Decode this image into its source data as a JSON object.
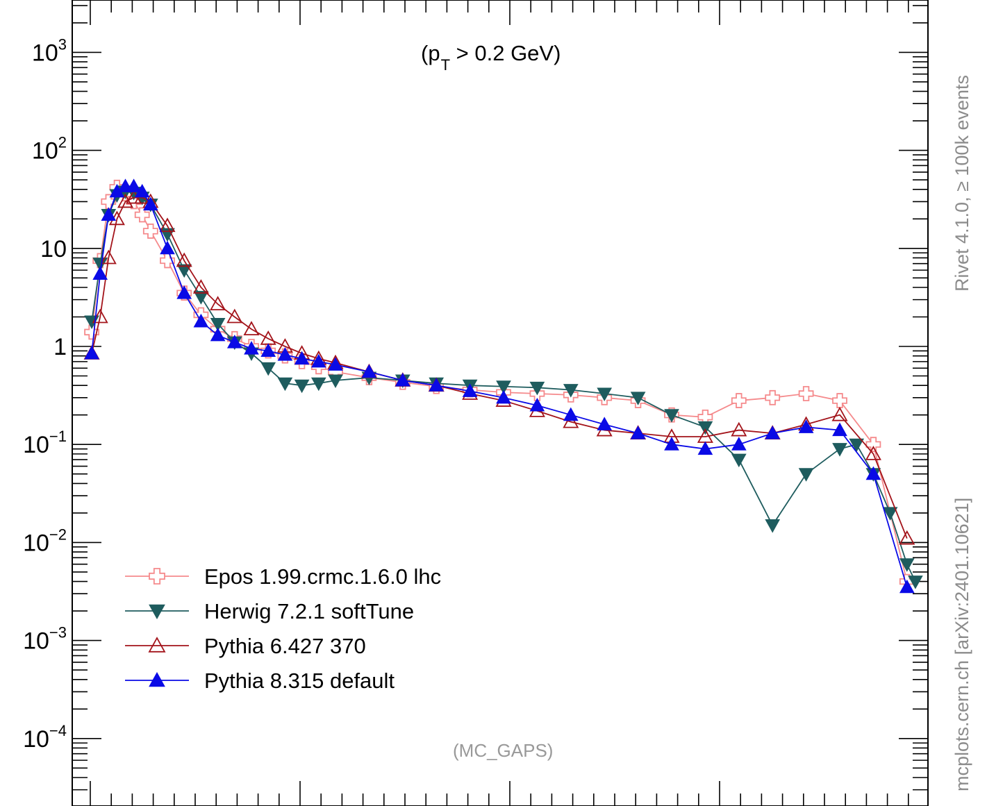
{
  "chart_data": {
    "type": "line",
    "title": "(p_T > 0.2 GeV)",
    "title_main": "(p",
    "title_sub": "T",
    "title_rest": " > 0.2 GeV)",
    "watermark": "(MC_GAPS)",
    "side_label_top": "Rivet 4.1.0, ≥ 100k events",
    "side_label_bottom": "mcplots.cern.ch [arXiv:2401.10621]",
    "y_scale": "log",
    "ylim": [
      2.5e-05,
      3000
    ],
    "xlim": [
      0,
      100
    ],
    "y_tick_labels": [
      {
        "value": 1000,
        "base": "10",
        "exp": "3"
      },
      {
        "value": 100,
        "base": "10",
        "exp": "2"
      },
      {
        "value": 10,
        "base": "10",
        "exp": ""
      },
      {
        "value": 1,
        "base": "1",
        "exp": ""
      },
      {
        "value": 0.1,
        "base": "10",
        "exp": "−1"
      },
      {
        "value": 0.01,
        "base": "10",
        "exp": "−2"
      },
      {
        "value": 0.001,
        "base": "10",
        "exp": "−3"
      },
      {
        "value": 0.0001,
        "base": "10",
        "exp": "−4"
      }
    ],
    "legend_position": "bottom-left",
    "series": [
      {
        "name": "Epos 1.99.crmc.1.6.0 lhc",
        "color": "#f58a8c",
        "marker": "open-cross",
        "x": [
          1,
          2,
          3,
          4,
          5,
          6,
          7,
          8,
          10,
          12,
          14,
          16,
          18,
          20,
          22,
          24,
          26,
          28,
          30,
          34,
          38,
          42,
          46,
          50,
          54,
          58,
          62,
          66,
          70,
          74,
          78,
          82,
          86,
          90,
          94,
          98
        ],
        "y": [
          1.4,
          7.5,
          30,
          42,
          36,
          30,
          22,
          15,
          7.5,
          3.5,
          2.1,
          1.5,
          1.2,
          1.0,
          0.9,
          0.8,
          0.7,
          0.62,
          0.55,
          0.48,
          0.43,
          0.39,
          0.36,
          0.34,
          0.33,
          0.32,
          0.3,
          0.28,
          0.2,
          0.19,
          0.28,
          0.3,
          0.33,
          0.28,
          0.1,
          0.004
        ]
      },
      {
        "name": "Herwig 7.2.1 softTune",
        "color": "#1e5c5e",
        "marker": "filled-triangle-down",
        "x": [
          1,
          2,
          3,
          4,
          5,
          6,
          7,
          8,
          10,
          12,
          14,
          16,
          18,
          20,
          22,
          24,
          26,
          28,
          30,
          34,
          38,
          42,
          46,
          50,
          54,
          58,
          62,
          66,
          70,
          74,
          78,
          82,
          86,
          90,
          92,
          94,
          96,
          98,
          99
        ],
        "y": [
          1.8,
          7,
          22,
          35,
          38,
          37,
          33,
          28,
          14,
          6,
          3.2,
          1.7,
          1.1,
          0.85,
          0.6,
          0.42,
          0.4,
          0.42,
          0.45,
          0.48,
          0.45,
          0.42,
          0.4,
          0.39,
          0.38,
          0.36,
          0.33,
          0.3,
          0.2,
          0.15,
          0.07,
          0.015,
          0.05,
          0.09,
          0.1,
          0.05,
          0.02,
          0.006,
          0.004
        ]
      },
      {
        "name": "Pythia 6.427 370",
        "color": "#a3131a",
        "marker": "open-triangle-up",
        "x": [
          1,
          2,
          3,
          4,
          5,
          6,
          7,
          8,
          10,
          12,
          14,
          16,
          18,
          20,
          22,
          24,
          26,
          28,
          30,
          34,
          38,
          42,
          46,
          50,
          54,
          58,
          62,
          66,
          70,
          74,
          78,
          82,
          86,
          90,
          94,
          98
        ],
        "y": [
          0.85,
          2,
          8,
          20,
          30,
          33,
          33,
          30,
          17,
          7.5,
          4,
          2.7,
          2,
          1.5,
          1.2,
          1.0,
          0.85,
          0.75,
          0.68,
          0.55,
          0.45,
          0.4,
          0.33,
          0.28,
          0.22,
          0.17,
          0.14,
          0.13,
          0.12,
          0.12,
          0.14,
          0.13,
          0.16,
          0.2,
          0.08,
          0.011
        ]
      },
      {
        "name": "Pythia 8.315 default",
        "color": "#0a0ae6",
        "marker": "filled-triangle-up",
        "x": [
          1,
          2,
          3,
          4,
          5,
          6,
          7,
          8,
          10,
          12,
          14,
          16,
          18,
          20,
          22,
          24,
          26,
          28,
          30,
          34,
          38,
          42,
          46,
          50,
          54,
          58,
          62,
          66,
          70,
          74,
          78,
          82,
          86,
          90,
          94,
          98
        ],
        "y": [
          0.85,
          5.5,
          22,
          38,
          43,
          43,
          38,
          28,
          10,
          3.5,
          1.8,
          1.3,
          1.1,
          0.95,
          0.9,
          0.82,
          0.75,
          0.7,
          0.65,
          0.55,
          0.45,
          0.4,
          0.35,
          0.3,
          0.25,
          0.2,
          0.16,
          0.13,
          0.1,
          0.09,
          0.1,
          0.13,
          0.15,
          0.14,
          0.05,
          0.0035
        ]
      }
    ]
  }
}
